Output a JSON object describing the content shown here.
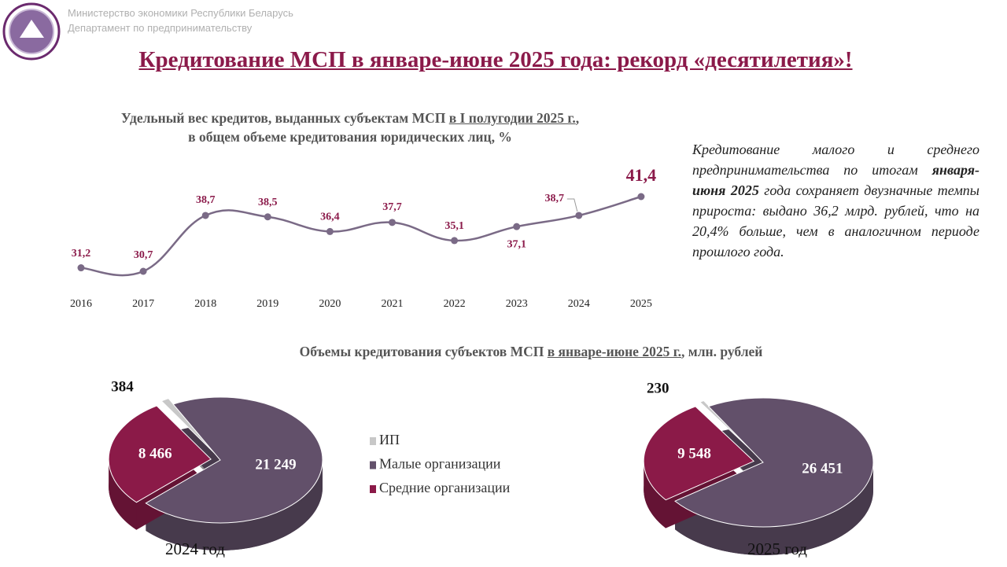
{
  "header": {
    "org": "Министерство экономики Республики Беларусь",
    "dept": "Департамент по предпринимательству",
    "title": "Кредитование МСП в январе-июне 2025 года: рекорд «десятилетия»!"
  },
  "text": {
    "parts": [
      "Кредитование малого и среднего предпринимательства по итогам ",
      "января-июня 2025",
      " года сохраняет двузначные темпы прироста: выдано 36,2 млрд. рублей, что на 20,4% больше, чем в аналогичном периоде прошлого года."
    ]
  },
  "chart_data": [
    {
      "type": "line",
      "title_parts": [
        "Удельный вес кредитов, выданных субъектам МСП ",
        "в I полугодии 2025 г.",
        ","
      ],
      "subtitle": "в общем объеме кредитования юридических лиц, %",
      "categories": [
        "2016",
        "2017",
        "2018",
        "2019",
        "2020",
        "2021",
        "2022",
        "2023",
        "2024",
        "2025"
      ],
      "values": [
        31.2,
        30.7,
        38.7,
        38.5,
        36.4,
        37.7,
        35.1,
        37.1,
        38.7,
        41.4
      ],
      "value_labels": [
        "31,2",
        "30,7",
        "38,7",
        "38,5",
        "36,4",
        "37,7",
        "35,1",
        "37,1",
        "38,7",
        "41,4"
      ],
      "color": "#7a6a86",
      "label_color": "#8b1a4a"
    },
    {
      "type": "pie",
      "title_parts": [
        "Объемы кредитования субъектов МСП ",
        "в январе-июне 2025 г.",
        ", млн. рублей"
      ],
      "categories": [
        "ИП",
        "Малые организации",
        "Средние организации"
      ],
      "colors": [
        "#c8c8c8",
        "#62506a",
        "#8b1a48"
      ],
      "series": [
        {
          "name": "2024 год",
          "values": [
            384,
            21249,
            8466
          ],
          "value_labels": [
            "384",
            "21 249",
            "8 466"
          ]
        },
        {
          "name": "2025 год",
          "values": [
            230,
            26451,
            9548
          ],
          "value_labels": [
            "230",
            "26 451",
            "9 548"
          ]
        }
      ]
    }
  ]
}
